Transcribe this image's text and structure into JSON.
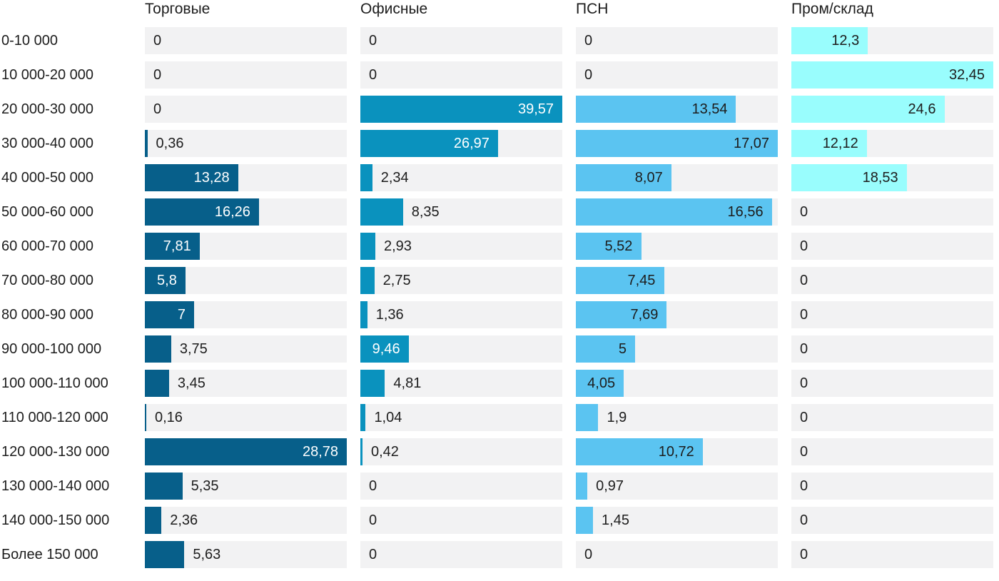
{
  "chart_data": {
    "type": "bar",
    "orientation": "horizontal",
    "title": "",
    "value_decimal_separator": ",",
    "grid": false,
    "legend_position": "column headers on top",
    "scaling": "each column scaled to its own maximum value",
    "track_color": "#f2f2f3",
    "text_color": "#1d1d1d",
    "categories": [
      "0-10 000",
      "10 000-20 000",
      "20 000-30 000",
      "30 000-40 000",
      "40 000-50 000",
      "50 000-60 000",
      "60 000-70 000",
      "70 000-80 000",
      "80 000-90 000",
      "90 000-100 000",
      "100 000-110 000",
      "110 000-120 000",
      "120 000-130 000",
      "130 000-140 000",
      "140 000-150 000",
      "Более 150 000"
    ],
    "series": [
      {
        "name": "Торговые",
        "color": "#075f8a",
        "label_color_inside": "#ffffff",
        "max": 28.78,
        "values": [
          0,
          0,
          0,
          0.36,
          13.28,
          16.26,
          7.81,
          5.8,
          7,
          3.75,
          3.45,
          0.16,
          28.78,
          5.35,
          2.36,
          5.63
        ]
      },
      {
        "name": "Офисные",
        "color": "#0a92be",
        "label_color_inside": "#ffffff",
        "max": 39.57,
        "values": [
          0,
          0,
          39.57,
          26.97,
          2.34,
          8.35,
          2.93,
          2.75,
          1.36,
          9.46,
          4.81,
          1.04,
          0.42,
          0,
          0,
          0
        ]
      },
      {
        "name": "ПСН",
        "color": "#5bc4f1",
        "label_color_inside": "#1d1d1d",
        "max": 17.07,
        "values": [
          0,
          0,
          13.54,
          17.07,
          8.07,
          16.56,
          5.52,
          7.45,
          7.69,
          5,
          4.05,
          1.9,
          10.72,
          0.97,
          1.45,
          0
        ]
      },
      {
        "name": "Пром/склад",
        "color": "#99fdfd",
        "label_color_inside": "#1d1d1d",
        "max": 32.45,
        "values": [
          12.3,
          32.45,
          24.6,
          12.12,
          18.53,
          0,
          0,
          0,
          0,
          0,
          0,
          0,
          0,
          0,
          0,
          0
        ]
      }
    ]
  }
}
